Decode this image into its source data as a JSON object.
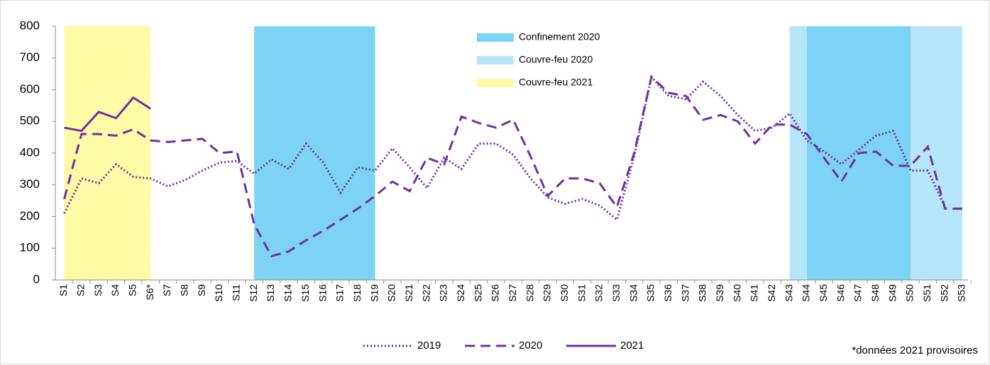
{
  "chart_data": {
    "type": "line",
    "categories": [
      "S1",
      "S2",
      "S3",
      "S4",
      "S5",
      "S6*",
      "S7",
      "S8",
      "S9",
      "S10",
      "S11",
      "S12",
      "S13",
      "S14",
      "S15",
      "S16",
      "S17",
      "S18",
      "S19",
      "S20",
      "S21",
      "S22",
      "S23",
      "S24",
      "S25",
      "S26",
      "S27",
      "S28",
      "S29",
      "S30",
      "S31",
      "S32",
      "S33",
      "S34",
      "S35",
      "S36",
      "S37",
      "S38",
      "S39",
      "S40",
      "S41",
      "S42",
      "S43",
      "S44",
      "S45",
      "S46",
      "S47",
      "S48",
      "S49",
      "S50",
      "S51",
      "S52",
      "S53"
    ],
    "series": [
      {
        "name": "2019",
        "color": "#7030a0",
        "style": "dotted",
        "values": [
          210,
          320,
          305,
          365,
          325,
          320,
          295,
          315,
          345,
          370,
          375,
          335,
          380,
          350,
          430,
          370,
          275,
          355,
          345,
          415,
          355,
          290,
          385,
          350,
          430,
          430,
          395,
          320,
          260,
          240,
          255,
          235,
          190,
          390,
          640,
          580,
          570,
          625,
          580,
          520,
          470,
          480,
          525,
          440,
          405,
          365,
          410,
          455,
          470,
          345,
          345,
          230,
          null
        ]
      },
      {
        "name": "2020",
        "color": "#7030a0",
        "style": "dashed",
        "values": [
          255,
          460,
          460,
          455,
          475,
          440,
          435,
          440,
          445,
          400,
          405,
          175,
          75,
          90,
          125,
          155,
          190,
          225,
          265,
          310,
          280,
          385,
          365,
          515,
          495,
          480,
          505,
          390,
          265,
          320,
          320,
          305,
          230,
          400,
          640,
          590,
          580,
          505,
          520,
          500,
          430,
          490,
          490,
          460,
          385,
          310,
          400,
          405,
          360,
          360,
          420,
          225,
          225
        ]
      },
      {
        "name": "2021",
        "color": "#7030a0",
        "style": "solid",
        "values": [
          480,
          470,
          530,
          510,
          575,
          540,
          null,
          null,
          null,
          null,
          null,
          null,
          null,
          null,
          null,
          null,
          null,
          null,
          null,
          null,
          null,
          null,
          null,
          null,
          null,
          null,
          null,
          null,
          null,
          null,
          null,
          null,
          null,
          null,
          null,
          null,
          null,
          null,
          null,
          null,
          null,
          null,
          null,
          null,
          null,
          null,
          null,
          null,
          null,
          null,
          null,
          null,
          null
        ]
      }
    ],
    "periods": [
      {
        "name": "Confinement 2020",
        "color": "#7dd3f5",
        "ranges": [
          [
            "S12",
            "S19"
          ],
          [
            "S44",
            "S50"
          ]
        ]
      },
      {
        "name": "Couvre-feu 2020",
        "color": "#b5e6fa",
        "ranges": [
          [
            "S43",
            "S44"
          ],
          [
            "S50",
            "S53"
          ]
        ]
      },
      {
        "name": "Couvre-feu 2021",
        "color": "#fffaa6",
        "ranges": [
          [
            "S1",
            "S6*"
          ]
        ]
      }
    ],
    "ylim": [
      0,
      800
    ],
    "yticks": [
      0,
      100,
      200,
      300,
      400,
      500,
      600,
      700,
      800
    ],
    "note": "*données 2021 provisoires"
  }
}
